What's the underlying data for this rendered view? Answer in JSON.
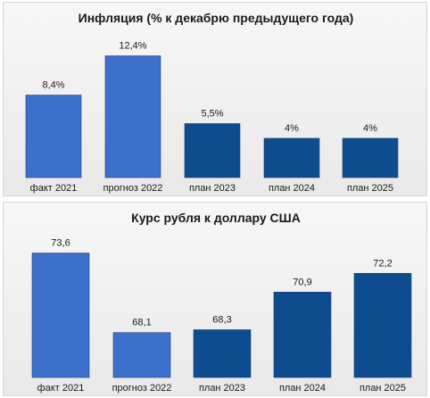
{
  "colors": {
    "fact": "#3d6fcc",
    "plan": "#0d4d8f"
  },
  "chart_data": [
    {
      "type": "bar",
      "title": "Инфляция (% к декабрю предыдущего года)",
      "categories": [
        "факт 2021",
        "прогноз 2022",
        "план 2023",
        "план 2024",
        "план 2025"
      ],
      "values": [
        8.4,
        12.4,
        5.5,
        4,
        4
      ],
      "data_labels": [
        "8,4%",
        "12,4%",
        "5,5%",
        "4%",
        "4%"
      ],
      "ylim": [
        0,
        14
      ],
      "grid": false,
      "legend": "none"
    },
    {
      "type": "bar",
      "title": "Курс рубля к доллару США",
      "categories": [
        "факт 2021",
        "прогноз 2022",
        "план 2023",
        "план 2024",
        "план 2025"
      ],
      "values": [
        73.6,
        68.1,
        68.3,
        70.9,
        72.2
      ],
      "data_labels": [
        "73,6",
        "68,1",
        "68,3",
        "70,9",
        "72,2"
      ],
      "ylim": [
        65,
        74.5
      ],
      "grid": false,
      "legend": "none"
    }
  ]
}
